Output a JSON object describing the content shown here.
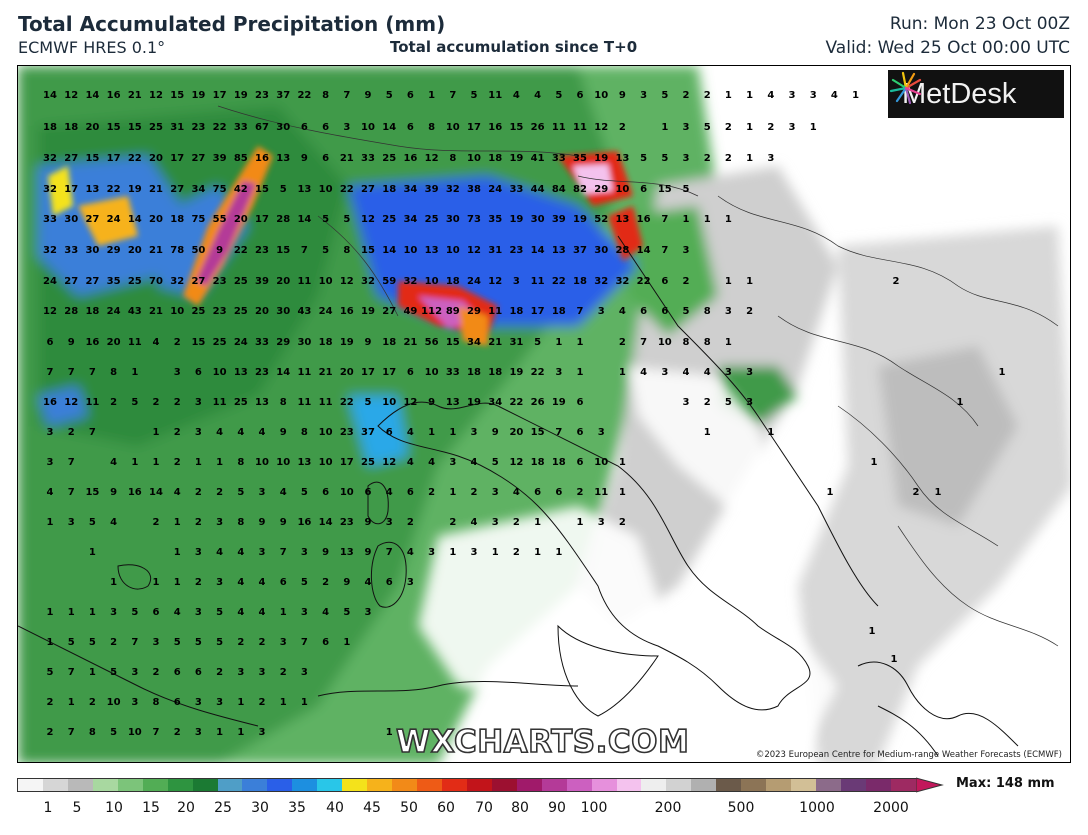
{
  "header": {
    "title": "Total Accumulated Precipitation (mm)",
    "model": "ECMWF HRES 0.1°",
    "subtitle": "Total accumulation since T+0",
    "run": "Run: Mon 23 Oct 00Z",
    "valid": "Valid: Wed 25 Oct 00:00 UTC"
  },
  "logo": {
    "name": "MetDesk",
    "icon": "metdesk-burst-icon"
  },
  "watermark": "WXCHARTS.COM",
  "copyright": "©2023 European Centre for Medium-range Weather Forecasts (ECMWF)",
  "colorbar": {
    "ticks": [
      "1",
      "5",
      "10",
      "15",
      "20",
      "25",
      "30",
      "35",
      "40",
      "45",
      "50",
      "60",
      "70",
      "80",
      "90",
      "100",
      "200",
      "500",
      "1000",
      "2000"
    ],
    "max_label": "Max: 148 mm",
    "colors": [
      "#f5f5f5",
      "#d6d6d6",
      "#b9b9b9",
      "#a8d8a0",
      "#7cc47a",
      "#52ad55",
      "#2e9440",
      "#1b7a33",
      "#4f9ec7",
      "#3b7fd9",
      "#2a5fe8",
      "#1d8fe0",
      "#29c6e8",
      "#f4e21b",
      "#f6b21b",
      "#f28a18",
      "#ee5b16",
      "#e22c16",
      "#c2141a",
      "#9c1030",
      "#a01a6a",
      "#b43a98",
      "#cc60c0",
      "#e690dc",
      "#f4c2ee",
      "#eeeeee",
      "#d2d2d2",
      "#b0b0b0",
      "#6b5a4a",
      "#8c7456",
      "#b59c72",
      "#d2bf96",
      "#8c6b8a",
      "#6a3a76",
      "#7a2a6a",
      "#9e2a62"
    ]
  },
  "grid_rows": [
    {
      "y": 32,
      "x0": 32,
      "values": [
        "14",
        "12",
        "14",
        "16",
        "21",
        "12",
        "15",
        "19",
        "17",
        "19",
        "23",
        "37",
        "22",
        "8",
        "7",
        "9",
        "5",
        "6",
        "1",
        "7",
        "5",
        "11",
        "4",
        "4",
        "5",
        "6",
        "10",
        "9",
        "3",
        "5",
        "2",
        "2",
        "1",
        "1",
        "4",
        "3",
        "3",
        "4",
        "1"
      ]
    },
    {
      "y": 64,
      "x0": 32,
      "values": [
        "18",
        "18",
        "20",
        "15",
        "15",
        "25",
        "31",
        "23",
        "22",
        "33",
        "67",
        "30",
        "6",
        "6",
        "3",
        "10",
        "14",
        "6",
        "8",
        "10",
        "17",
        "16",
        "15",
        "26",
        "11",
        "11",
        "12",
        "2",
        "",
        "1",
        "3",
        "5",
        "2",
        "1",
        "2",
        "3",
        "1"
      ]
    },
    {
      "y": 95,
      "x0": 32,
      "values": [
        "32",
        "27",
        "15",
        "17",
        "22",
        "20",
        "17",
        "27",
        "39",
        "85",
        "16",
        "13",
        "9",
        "6",
        "21",
        "33",
        "25",
        "16",
        "12",
        "8",
        "10",
        "18",
        "19",
        "41",
        "33",
        "35",
        "19",
        "13",
        "5",
        "5",
        "3",
        "2",
        "2",
        "1",
        "3"
      ]
    },
    {
      "y": 126,
      "x0": 32,
      "values": [
        "32",
        "17",
        "13",
        "22",
        "19",
        "21",
        "27",
        "34",
        "75",
        "42",
        "15",
        "5",
        "13",
        "10",
        "22",
        "27",
        "18",
        "34",
        "39",
        "32",
        "38",
        "24",
        "33",
        "44",
        "84",
        "82",
        "29",
        "10",
        "6",
        "15",
        "5"
      ]
    },
    {
      "y": 156,
      "x0": 32,
      "values": [
        "33",
        "30",
        "27",
        "24",
        "14",
        "20",
        "18",
        "75",
        "55",
        "20",
        "17",
        "28",
        "14",
        "5",
        "5",
        "12",
        "25",
        "34",
        "25",
        "30",
        "73",
        "35",
        "19",
        "30",
        "39",
        "19",
        "52",
        "13",
        "16",
        "7",
        "1",
        "1",
        "1"
      ]
    },
    {
      "y": 187,
      "x0": 32,
      "values": [
        "32",
        "33",
        "30",
        "29",
        "20",
        "21",
        "78",
        "50",
        "9",
        "22",
        "23",
        "15",
        "7",
        "5",
        "8",
        "15",
        "14",
        "10",
        "13",
        "10",
        "12",
        "31",
        "23",
        "14",
        "13",
        "37",
        "30",
        "28",
        "14",
        "7",
        "3"
      ]
    },
    {
      "y": 218,
      "x0": 32,
      "values": [
        "24",
        "27",
        "27",
        "35",
        "25",
        "70",
        "32",
        "27",
        "23",
        "25",
        "39",
        "20",
        "11",
        "10",
        "12",
        "32",
        "59",
        "32",
        "10",
        "18",
        "24",
        "12",
        "3",
        "11",
        "22",
        "18",
        "32",
        "32",
        "22",
        "6",
        "2",
        "",
        "1",
        "1"
      ]
    },
    {
      "y": 248,
      "x0": 32,
      "values": [
        "12",
        "28",
        "18",
        "24",
        "43",
        "21",
        "10",
        "25",
        "23",
        "25",
        "20",
        "30",
        "43",
        "24",
        "16",
        "19",
        "27",
        "49",
        "112",
        "89",
        "29",
        "11",
        "18",
        "17",
        "18",
        "7",
        "3",
        "4",
        "6",
        "6",
        "5",
        "8",
        "3",
        "2"
      ]
    },
    {
      "y": 279,
      "x0": 32,
      "values": [
        "6",
        "9",
        "16",
        "20",
        "11",
        "4",
        "2",
        "15",
        "25",
        "24",
        "33",
        "29",
        "30",
        "18",
        "19",
        "9",
        "18",
        "21",
        "56",
        "15",
        "34",
        "21",
        "31",
        "5",
        "1",
        "1",
        "",
        "2",
        "7",
        "10",
        "8",
        "8",
        "1"
      ]
    },
    {
      "y": 309,
      "x0": 32,
      "values": [
        "7",
        "7",
        "7",
        "8",
        "1",
        "",
        "3",
        "6",
        "10",
        "13",
        "23",
        "14",
        "11",
        "21",
        "20",
        "17",
        "17",
        "6",
        "10",
        "33",
        "18",
        "18",
        "19",
        "22",
        "3",
        "1",
        "",
        "1",
        "4",
        "3",
        "4",
        "4",
        "3",
        "3"
      ]
    },
    {
      "y": 339,
      "x0": 32,
      "values": [
        "16",
        "12",
        "11",
        "2",
        "5",
        "2",
        "2",
        "3",
        "11",
        "25",
        "13",
        "8",
        "11",
        "11",
        "22",
        "5",
        "10",
        "12",
        "9",
        "13",
        "19",
        "34",
        "22",
        "26",
        "19",
        "6",
        "",
        "",
        "",
        "",
        "3",
        "2",
        "5",
        "3"
      ]
    },
    {
      "y": 369,
      "x0": 32,
      "values": [
        "3",
        "2",
        "7",
        "",
        "",
        "1",
        "2",
        "3",
        "4",
        "4",
        "4",
        "9",
        "8",
        "10",
        "23",
        "37",
        "6",
        "4",
        "1",
        "1",
        "3",
        "9",
        "20",
        "15",
        "7",
        "6",
        "3",
        "",
        "",
        "",
        "",
        "1",
        "",
        "",
        "1"
      ]
    },
    {
      "y": 399,
      "x0": 32,
      "values": [
        "3",
        "7",
        "",
        "4",
        "1",
        "1",
        "2",
        "1",
        "1",
        "8",
        "10",
        "10",
        "13",
        "10",
        "17",
        "25",
        "12",
        "4",
        "4",
        "3",
        "4",
        "5",
        "12",
        "18",
        "18",
        "6",
        "10",
        "1"
      ]
    },
    {
      "y": 429,
      "x0": 32,
      "values": [
        "4",
        "7",
        "15",
        "9",
        "16",
        "14",
        "4",
        "2",
        "2",
        "5",
        "3",
        "4",
        "5",
        "6",
        "10",
        "6",
        "4",
        "6",
        "2",
        "1",
        "2",
        "3",
        "4",
        "6",
        "6",
        "2",
        "11",
        "1"
      ]
    },
    {
      "y": 459,
      "x0": 32,
      "values": [
        "1",
        "3",
        "5",
        "4",
        "",
        "2",
        "1",
        "2",
        "3",
        "8",
        "9",
        "9",
        "16",
        "14",
        "23",
        "9",
        "3",
        "2",
        "",
        "2",
        "4",
        "3",
        "2",
        "1",
        "",
        "1",
        "3",
        "2"
      ]
    },
    {
      "y": 489,
      "x0": 32,
      "values": [
        "",
        "",
        "1",
        "",
        "",
        "",
        "1",
        "3",
        "4",
        "4",
        "3",
        "7",
        "3",
        "9",
        "13",
        "9",
        "7",
        "4",
        "3",
        "1",
        "3",
        "1",
        "2",
        "1",
        "1"
      ]
    },
    {
      "y": 519,
      "x0": 32,
      "values": [
        "",
        "",
        "",
        "1",
        "",
        "1",
        "1",
        "2",
        "3",
        "4",
        "4",
        "6",
        "5",
        "2",
        "9",
        "4",
        "6",
        "3"
      ]
    },
    {
      "y": 549,
      "x0": 32,
      "values": [
        "1",
        "1",
        "1",
        "3",
        "5",
        "6",
        "4",
        "3",
        "5",
        "4",
        "4",
        "1",
        "3",
        "4",
        "5",
        "3"
      ]
    },
    {
      "y": 579,
      "x0": 32,
      "values": [
        "1",
        "5",
        "5",
        "2",
        "7",
        "3",
        "5",
        "5",
        "5",
        "2",
        "2",
        "3",
        "7",
        "6",
        "1"
      ]
    },
    {
      "y": 609,
      "x0": 32,
      "values": [
        "5",
        "7",
        "1",
        "5",
        "3",
        "2",
        "6",
        "6",
        "2",
        "3",
        "3",
        "2",
        "3"
      ]
    },
    {
      "y": 639,
      "x0": 32,
      "values": [
        "2",
        "1",
        "2",
        "10",
        "3",
        "8",
        "6",
        "3",
        "3",
        "1",
        "2",
        "1",
        "1"
      ]
    },
    {
      "y": 669,
      "x0": 32,
      "values": [
        "2",
        "7",
        "8",
        "5",
        "10",
        "7",
        "2",
        "3",
        "1",
        "1",
        "3",
        "",
        "",
        "",
        "",
        "",
        "1"
      ]
    }
  ],
  "extra_labels": [
    {
      "x": 878,
      "y": 218,
      "value": "2"
    },
    {
      "x": 984,
      "y": 309,
      "value": "1"
    },
    {
      "x": 942,
      "y": 339,
      "value": "1"
    },
    {
      "x": 856,
      "y": 399,
      "value": "1"
    },
    {
      "x": 812,
      "y": 429,
      "value": "1"
    },
    {
      "x": 898,
      "y": 429,
      "value": "2"
    },
    {
      "x": 920,
      "y": 429,
      "value": "1"
    },
    {
      "x": 854,
      "y": 568,
      "value": "1"
    },
    {
      "x": 876,
      "y": 596,
      "value": "1"
    }
  ]
}
